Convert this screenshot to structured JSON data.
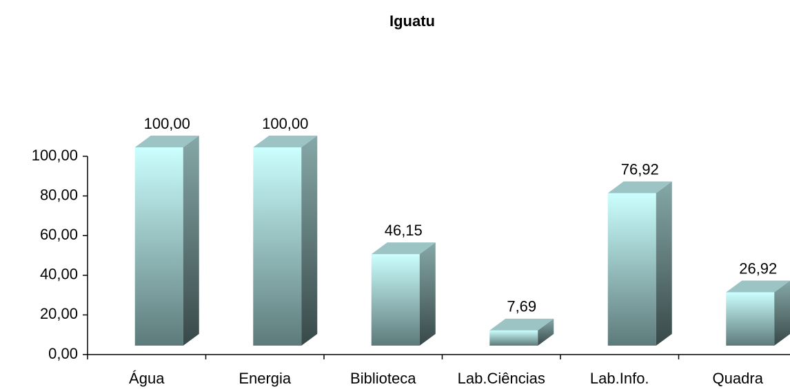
{
  "chart_data": {
    "type": "bar3d",
    "title": "Iguatu",
    "categories": [
      "Água",
      "Energia",
      "Biblioteca",
      "Lab.Ciências",
      "Lab.Info.",
      "Quadra"
    ],
    "values": [
      100,
      100,
      46.15,
      7.69,
      76.92,
      26.92
    ],
    "value_labels": [
      "100,00",
      "100,00",
      "46,15",
      "7,69",
      "76,92",
      "26,92"
    ],
    "color": "#ccffff",
    "ylim": [
      0,
      100
    ],
    "yticks": [
      {
        "value": 0,
        "label": "0,00"
      },
      {
        "value": 20,
        "label": "20,00"
      },
      {
        "value": 40,
        "label": "40,00"
      },
      {
        "value": 60,
        "label": "60,00"
      },
      {
        "value": 80,
        "label": "80,00"
      },
      {
        "value": 100,
        "label": "100,00"
      }
    ],
    "grid": false
  }
}
